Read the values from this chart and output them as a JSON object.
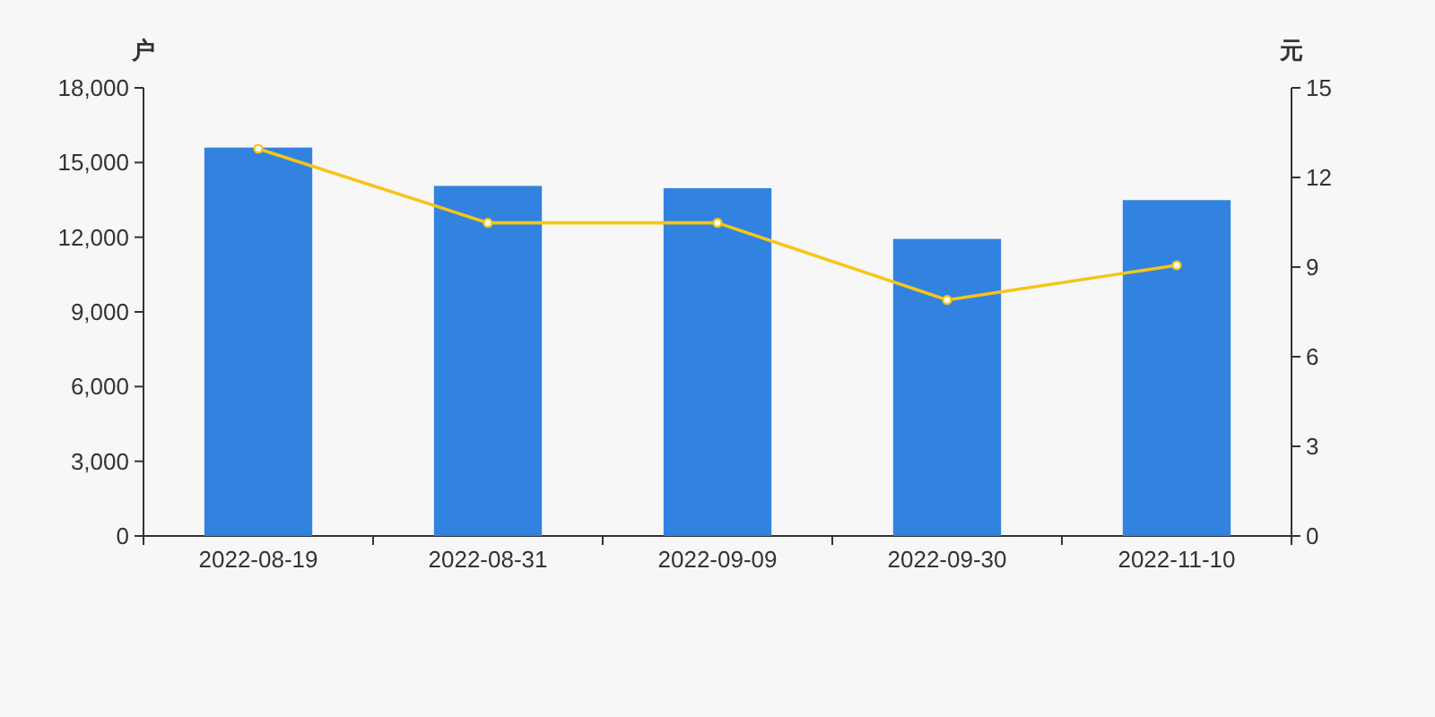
{
  "chart_data": {
    "type": "bar",
    "categories": [
      "2022-08-19",
      "2022-08-31",
      "2022-09-09",
      "2022-09-30",
      "2022-11-10"
    ],
    "ylabel": "户",
    "y2label": "元",
    "ylim": [
      0,
      18000
    ],
    "yticks": [
      0,
      {
        "value": 3000,
        "label": "3,000"
      },
      {
        "value": 6000,
        "label": "6,000"
      },
      {
        "value": 9000,
        "label": "9,000"
      },
      {
        "value": 12000,
        "label": "12,000"
      },
      {
        "value": 15000,
        "label": "15,000"
      },
      {
        "value": 18000,
        "label": "18,000"
      }
    ],
    "y2lim": [
      0,
      15
    ],
    "y2ticks": [
      0,
      3,
      6,
      9,
      12,
      15
    ],
    "series": [
      {
        "color": "#3282e0",
        "values": [
          15600,
          14060,
          13970,
          11930,
          13490
        ]
      },
      {
        "type": "line",
        "axis": "y2",
        "color": "#f5c518",
        "marker": "circle",
        "line_style": "solid",
        "values": [
          12.96,
          10.48,
          10.48,
          7.9,
          9.06
        ]
      }
    ]
  }
}
